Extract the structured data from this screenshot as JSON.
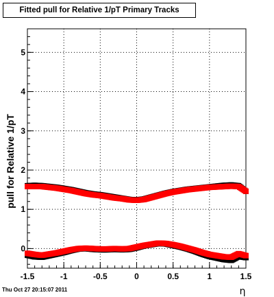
{
  "title": "Fitted pull for Relative 1/pT  Primary Tracks",
  "timestamp": "Thu Oct 27 20:15:07 2011",
  "chart_data": {
    "type": "scatter",
    "xlabel": "η",
    "ylabel": "pull for Relative 1/pT",
    "xlim": [
      -1.5,
      1.5
    ],
    "ylim": [
      -0.5,
      5.6
    ],
    "xticks": [
      "-1.5",
      "-1",
      "-0.5",
      "0",
      "0.5",
      "1",
      "1.5"
    ],
    "yticks": [
      "0",
      "1",
      "2",
      "3",
      "4",
      "5"
    ],
    "grid": true,
    "series": [
      {
        "color": "#000000",
        "x": [
          -1.5,
          -1.4,
          -1.3,
          -1.2,
          -1.1,
          -1.0,
          -0.9,
          -0.8,
          -0.7,
          -0.6,
          -0.5,
          -0.4,
          -0.3,
          -0.2,
          -0.1,
          0.0,
          0.1,
          0.2,
          0.3,
          0.4,
          0.5,
          0.6,
          0.7,
          0.8,
          0.9,
          1.0,
          1.1,
          1.2,
          1.3,
          1.4,
          1.5
        ],
        "values": [
          1.6,
          1.61,
          1.6,
          1.58,
          1.56,
          1.53,
          1.5,
          1.46,
          1.42,
          1.39,
          1.37,
          1.34,
          1.31,
          1.28,
          1.25,
          1.24,
          1.26,
          1.31,
          1.36,
          1.41,
          1.45,
          1.48,
          1.51,
          1.53,
          1.55,
          1.57,
          1.59,
          1.61,
          1.62,
          1.6,
          1.46
        ]
      },
      {
        "color": "#ff0000",
        "x": [
          -1.5,
          -1.4,
          -1.3,
          -1.2,
          -1.1,
          -1.0,
          -0.9,
          -0.8,
          -0.7,
          -0.6,
          -0.5,
          -0.4,
          -0.3,
          -0.2,
          -0.1,
          0.0,
          0.1,
          0.2,
          0.3,
          0.4,
          0.5,
          0.6,
          0.7,
          0.8,
          0.9,
          1.0,
          1.1,
          1.2,
          1.3,
          1.4,
          1.5
        ],
        "values": [
          1.58,
          1.58,
          1.58,
          1.56,
          1.54,
          1.51,
          1.48,
          1.44,
          1.4,
          1.37,
          1.35,
          1.32,
          1.29,
          1.27,
          1.24,
          1.23,
          1.25,
          1.3,
          1.35,
          1.4,
          1.44,
          1.47,
          1.5,
          1.52,
          1.54,
          1.56,
          1.57,
          1.58,
          1.59,
          1.58,
          1.46
        ]
      },
      {
        "color": "#000000",
        "x": [
          -1.5,
          -1.4,
          -1.3,
          -1.2,
          -1.1,
          -1.0,
          -0.9,
          -0.8,
          -0.7,
          -0.6,
          -0.5,
          -0.4,
          -0.3,
          -0.2,
          -0.1,
          0.0,
          0.1,
          0.2,
          0.3,
          0.4,
          0.5,
          0.6,
          0.7,
          0.8,
          0.9,
          1.0,
          1.1,
          1.2,
          1.3,
          1.4,
          1.5
        ],
        "values": [
          -0.17,
          -0.21,
          -0.22,
          -0.18,
          -0.14,
          -0.1,
          -0.05,
          -0.01,
          0.0,
          -0.02,
          -0.03,
          -0.03,
          -0.02,
          -0.03,
          -0.02,
          0.02,
          0.07,
          0.1,
          0.13,
          0.12,
          0.08,
          0.04,
          -0.01,
          -0.07,
          -0.14,
          -0.2,
          -0.24,
          -0.28,
          -0.3,
          -0.2,
          -0.23
        ]
      },
      {
        "color": "#ff0000",
        "x": [
          -1.5,
          -1.4,
          -1.3,
          -1.2,
          -1.1,
          -1.0,
          -0.9,
          -0.8,
          -0.7,
          -0.6,
          -0.5,
          -0.4,
          -0.3,
          -0.2,
          -0.1,
          0.0,
          0.1,
          0.2,
          0.3,
          0.4,
          0.5,
          0.6,
          0.7,
          0.8,
          0.9,
          1.0,
          1.1,
          1.2,
          1.3,
          1.4,
          1.5
        ],
        "values": [
          -0.12,
          -0.15,
          -0.17,
          -0.14,
          -0.11,
          -0.07,
          -0.03,
          0.0,
          0.01,
          0.0,
          -0.01,
          -0.01,
          0.0,
          -0.01,
          0.0,
          0.04,
          0.08,
          0.11,
          0.14,
          0.13,
          0.1,
          0.06,
          0.01,
          -0.04,
          -0.1,
          -0.15,
          -0.18,
          -0.21,
          -0.22,
          -0.13,
          -0.18
        ]
      }
    ]
  }
}
